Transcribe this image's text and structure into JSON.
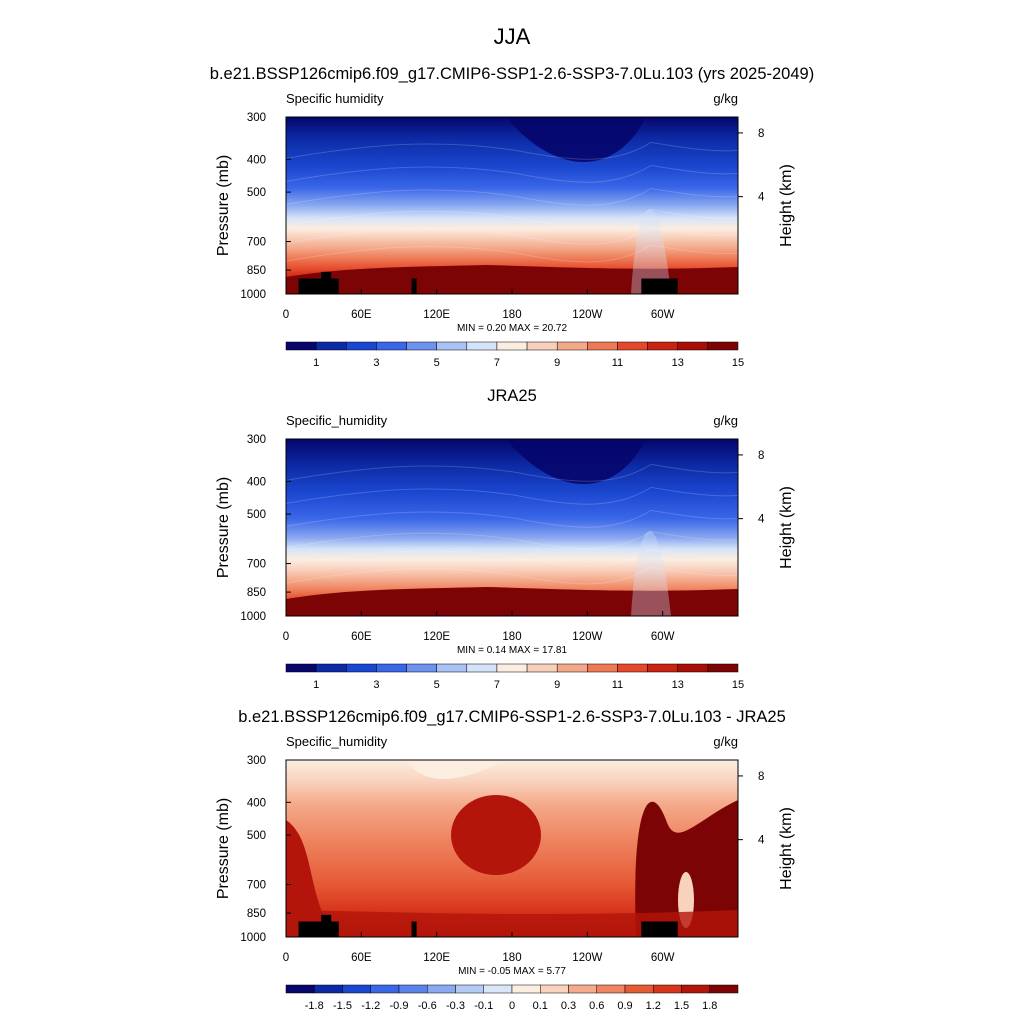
{
  "figure": {
    "title": "JJA"
  },
  "chart_data": [
    {
      "type": "heatmap",
      "kind": "pressure-longitude contour",
      "title": "b.e21.BSSP126cmip6.f09_g17.CMIP6-SSP1-2.6-SSP3-7.0Lu.103 (yrs 2025-2049)",
      "left_label": "Specific humidity",
      "right_label": "g/kg",
      "ylabel": "Pressure (mb)",
      "y2label": "Height (km)",
      "x_ticks": [
        "0",
        "60E",
        "120E",
        "180",
        "120W",
        "60W"
      ],
      "y_ticks": [
        "300",
        "400",
        "500",
        "700",
        "850",
        "1000"
      ],
      "y2_ticks": [
        "8",
        "4"
      ],
      "stats": "MIN =   0.20  MAX =  20.72",
      "colorbar_labels": [
        "1",
        "3",
        "5",
        "7",
        "9",
        "11",
        "13",
        "15"
      ],
      "colorbar_colors": [
        "#06066b",
        "#0c2aa5",
        "#1a47cf",
        "#3a66e8",
        "#6e93ee",
        "#a9c1f3",
        "#d5e3f8",
        "#fbeee0",
        "#f8cfbb",
        "#f4a88a",
        "#ee7a55",
        "#e5492b",
        "#c92412",
        "#a80e07",
        "#7d0404"
      ],
      "ylim": [
        1000,
        300
      ],
      "xlim": [
        0,
        360
      ],
      "topography": "black blocks near surface at ~10-40E (Africa/Tibet), ~100E, ~70-50W (Andes)"
    },
    {
      "type": "heatmap",
      "kind": "pressure-longitude contour",
      "title": "JRA25",
      "left_label": "Specific_humidity",
      "right_label": "g/kg",
      "ylabel": "Pressure (mb)",
      "y2label": "Height (km)",
      "x_ticks": [
        "0",
        "60E",
        "120E",
        "180",
        "120W",
        "60W"
      ],
      "y_ticks": [
        "300",
        "400",
        "500",
        "700",
        "850",
        "1000"
      ],
      "y2_ticks": [
        "8",
        "4"
      ],
      "stats": "MIN =   0.14  MAX =  17.81",
      "colorbar_labels": [
        "1",
        "3",
        "5",
        "7",
        "9",
        "11",
        "13",
        "15"
      ],
      "colorbar_colors": [
        "#06066b",
        "#0c2aa5",
        "#1a47cf",
        "#3a66e8",
        "#6e93ee",
        "#a9c1f3",
        "#d5e3f8",
        "#fbeee0",
        "#f8cfbb",
        "#f4a88a",
        "#ee7a55",
        "#e5492b",
        "#c92412",
        "#a80e07",
        "#7d0404"
      ],
      "ylim": [
        1000,
        300
      ],
      "xlim": [
        0,
        360
      ]
    },
    {
      "type": "heatmap",
      "kind": "pressure-longitude contour (difference)",
      "title": "b.e21.BSSP126cmip6.f09_g17.CMIP6-SSP1-2.6-SSP3-7.0Lu.103 - JRA25",
      "left_label": "Specific_humidity",
      "right_label": "g/kg",
      "ylabel": "Pressure (mb)",
      "y2label": "Height (km)",
      "x_ticks": [
        "0",
        "60E",
        "120E",
        "180",
        "120W",
        "60W"
      ],
      "y_ticks": [
        "300",
        "400",
        "500",
        "700",
        "850",
        "1000"
      ],
      "y2_ticks": [
        "8",
        "4"
      ],
      "stats": "MIN =  -0.05  MAX =   5.77",
      "colorbar_labels": [
        "-1.8",
        "-1.5",
        "-1.2",
        "-0.9",
        "-0.6",
        "-0.3",
        "-0.1",
        "0",
        "0.1",
        "0.3",
        "0.6",
        "0.9",
        "1.2",
        "1.5",
        "1.8"
      ],
      "colorbar_colors": [
        "#06066b",
        "#0c2aa5",
        "#1a47cf",
        "#3a66e8",
        "#5a84ec",
        "#8aa9f0",
        "#b4ccf4",
        "#d8e6f8",
        "#fbeee0",
        "#f8d2bd",
        "#f4aa8b",
        "#ef8460",
        "#e65a36",
        "#d8351c",
        "#b3150a",
        "#7d0404"
      ],
      "ylim": [
        1000,
        300
      ],
      "xlim": [
        0,
        360
      ]
    }
  ]
}
